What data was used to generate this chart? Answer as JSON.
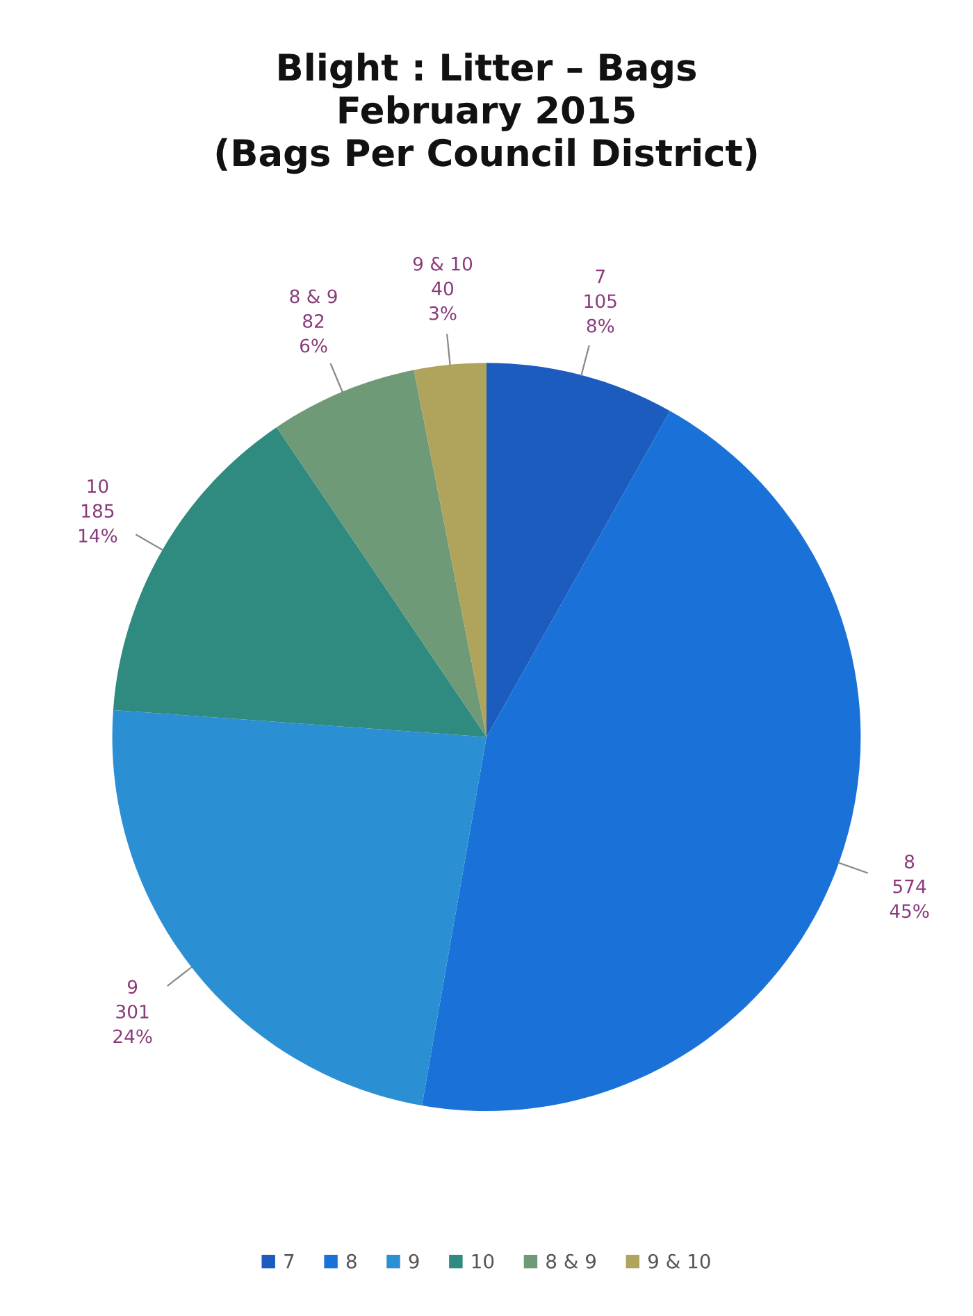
{
  "chart_data": {
    "type": "pie",
    "title": "Blight : Litter – Bags\nFebruary 2015\n(Bags Per Council District)",
    "categories": [
      "7",
      "8",
      "9",
      "10",
      "8 & 9",
      "9 & 10"
    ],
    "values": [
      105,
      574,
      301,
      185,
      82,
      40
    ],
    "value_labels": [
      "105\n8%",
      "574\n45%",
      "301\n24%",
      "185\n14%",
      "82\n6%",
      "40\n3%"
    ],
    "colors": [
      "#1c5cbf",
      "#1a72d8",
      "#2b8fd4",
      "#2f8a80",
      "#6f9a78",
      "#b0a45c"
    ],
    "legend": "bottom"
  }
}
